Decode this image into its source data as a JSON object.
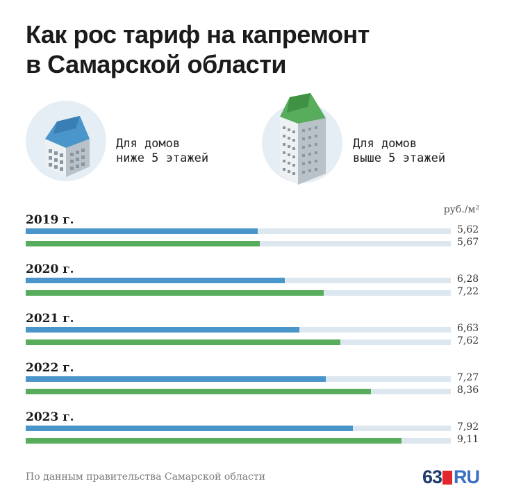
{
  "title": {
    "line1": "Как рос тариф на капремонт",
    "line2": "в Самарской области"
  },
  "legend": [
    {
      "line1": "Для домов",
      "line2": "ниже 5 этажей",
      "icon": "low-rise-building-icon",
      "color": "#4a95c9"
    },
    {
      "line1": "Для домов",
      "line2": "выше 5 этажей",
      "icon": "high-rise-building-icon",
      "color": "#58ad5c"
    }
  ],
  "colors": {
    "series_low": "#4a95c9",
    "series_high": "#58ad5c",
    "track": "#dde7ef"
  },
  "chart_data": {
    "type": "bar",
    "orientation": "horizontal",
    "unit": "руб./м²",
    "categories": [
      "2019 г.",
      "2020 г.",
      "2021 г.",
      "2022 г.",
      "2023 г."
    ],
    "series": [
      {
        "name": "Для домов ниже 5 этажей",
        "values": [
          5.62,
          6.28,
          6.63,
          7.27,
          7.92
        ],
        "labels": [
          "5,62",
          "6,28",
          "6,63",
          "7,27",
          "7,92"
        ]
      },
      {
        "name": "Для домов выше 5 этажей",
        "values": [
          5.67,
          7.22,
          7.62,
          8.36,
          9.11
        ],
        "labels": [
          "5,67",
          "7,22",
          "7,62",
          "8,36",
          "9,11"
        ]
      }
    ],
    "xlim": [
      0,
      10.3
    ]
  },
  "footer": {
    "source": "По данным правительства Самарской области",
    "logo_num": "63",
    "logo_ru": "RU"
  }
}
